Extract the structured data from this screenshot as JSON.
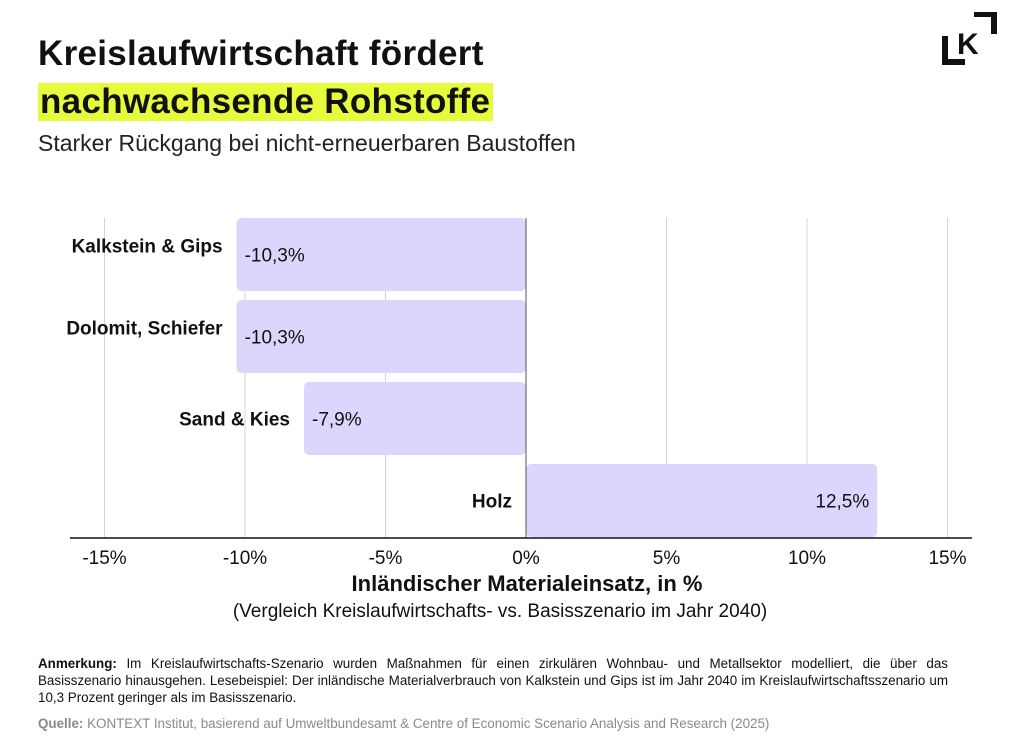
{
  "header": {
    "title_line1": "Kreislaufwirtschaft fördert",
    "title_line2": "nachwachsende Rohstoffe",
    "subtitle": "Starker Rückgang bei nicht-erneuerbaren Baustoffen",
    "logo_text": "K",
    "highlight_color": "#e6fb3c"
  },
  "chart_data": {
    "type": "bar",
    "orientation": "horizontal",
    "categories": [
      "Kalkstein & Gips",
      "Dolomit, Schiefer",
      "Sand & Kies",
      "Holz"
    ],
    "values": [
      -10.3,
      -10.3,
      -7.9,
      12.5
    ],
    "value_labels": [
      "-10,3%",
      "-10,3%",
      "-7,9%",
      "12,5%"
    ],
    "xlabel": "Inländischer Materialeinsatz, in %",
    "xlabel_sub": "(Vergleich Kreislaufwirtschafts- vs. Basisszenario im Jahr 2040)",
    "xlim": [
      -15,
      15
    ],
    "xticks": [
      -15,
      -10,
      -5,
      0,
      5,
      10,
      15
    ],
    "xtick_labels": [
      "-15%",
      "-10%",
      "-5%",
      "0%",
      "5%",
      "10%",
      "15%"
    ],
    "grid": true,
    "bar_color": "#dcd6fd"
  },
  "footer": {
    "note_label": "Anmerkung:",
    "note_text": " Im Kreislaufwirtschafts-Szenario wurden Maßnahmen für einen zirkulären Wohnbau- und Metallsektor modelliert, die über das Basisszenario hinausgehen. Lesebeispiel: Der inländische Materialverbrauch von Kalkstein und Gips ist im Jahr 2040 im Kreislaufwirtschaftsszenario um 10,3 Prozent geringer als im Basisszenario.",
    "source_label": "Quelle:",
    "source_text": " KONTEXT Institut, basierend auf Umweltbundesamt & Centre of Economic Scenario Analysis and Research (2025)"
  }
}
